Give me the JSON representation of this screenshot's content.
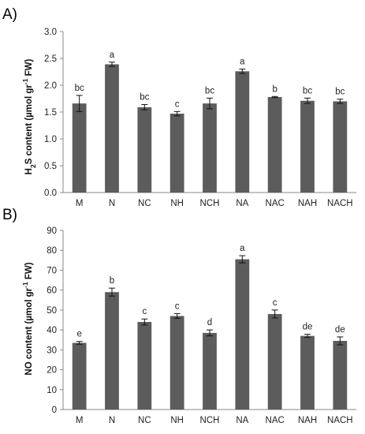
{
  "chart_data": [
    {
      "type": "bar",
      "panel": "A)",
      "ylabel_main": "H",
      "ylabel_sub": "2",
      "ylabel_rest": "S  content (µmol gr",
      "ylabel_sup": "-1",
      "ylabel_end": " FW)",
      "categories": [
        "M",
        "N",
        "NC",
        "NH",
        "NCH",
        "NA",
        "NAC",
        "NAH",
        "NACH"
      ],
      "values": [
        1.66,
        2.39,
        1.59,
        1.47,
        1.66,
        2.26,
        1.78,
        1.71,
        1.7
      ],
      "errors": [
        0.15,
        0.04,
        0.05,
        0.04,
        0.1,
        0.04,
        0.01,
        0.05,
        0.04
      ],
      "letters": [
        "bc",
        "a",
        "bc",
        "c",
        "bc",
        "a",
        "b",
        "bc",
        "bc"
      ],
      "yticks": [
        "0.0",
        "0.5",
        "1.0",
        "1.5",
        "2.0",
        "2.5",
        "3.0"
      ],
      "ylim": [
        0,
        3.0
      ],
      "bar_color": "#5c5c5c",
      "grid": false
    },
    {
      "type": "bar",
      "panel": "B)",
      "ylabel_main": "NO content (µmol gr",
      "ylabel_sup": "-1",
      "ylabel_end": " FW)",
      "categories": [
        "M",
        "N",
        "NC",
        "NH",
        "NCH",
        "NA",
        "NAC",
        "NAH",
        "NACH"
      ],
      "values": [
        33.5,
        59.0,
        44.0,
        47.0,
        38.5,
        75.5,
        48.0,
        37.0,
        34.5
      ],
      "errors": [
        0.7,
        2.0,
        1.5,
        1.2,
        1.5,
        1.8,
        2.0,
        0.8,
        2.0
      ],
      "letters": [
        "e",
        "b",
        "c",
        "c",
        "d",
        "a",
        "c",
        "de",
        "de"
      ],
      "yticks": [
        "0",
        "10",
        "20",
        "30",
        "40",
        "50",
        "60",
        "70",
        "80",
        "90"
      ],
      "ylim": [
        0,
        90
      ],
      "bar_color": "#5c5c5c",
      "grid": false
    }
  ]
}
